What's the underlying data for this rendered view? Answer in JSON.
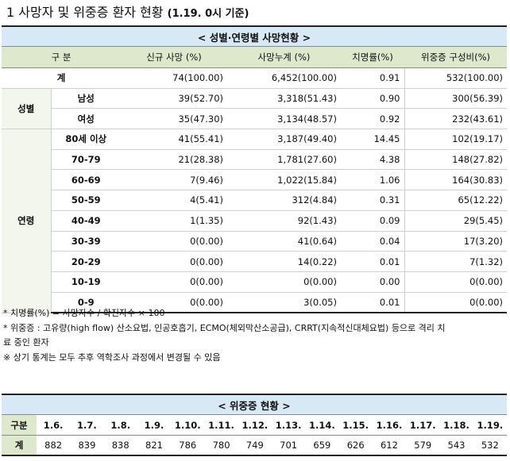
{
  "title": {
    "text": "1  사망자 및 위중증 환자 현황",
    "date": "(1.19. 0시 기준)"
  },
  "death_table": {
    "caption": "< 성별·연령별 사망현황 >",
    "headers": [
      "구 분",
      "신규 사망 (%)",
      "사망누계 (%)",
      "치명률(%)",
      "위중증   구성비(%)"
    ],
    "total": {
      "label": "계",
      "new": "74(100.00)",
      "cum": "6,452(100.00)",
      "fatality": "0.91",
      "severe": "532(100.00)"
    },
    "sex_group": "성별",
    "sex": [
      {
        "label": "남성",
        "new": "39(52.70)",
        "cum": "3,318(51.43)",
        "fatality": "0.90",
        "severe": "300(56.39)"
      },
      {
        "label": "여성",
        "new": "35(47.30)",
        "cum": "3,134(48.57)",
        "fatality": "0.92",
        "severe": "232(43.61)"
      }
    ],
    "age_group": "연령",
    "age": [
      {
        "label": "80세 이상",
        "new": "41(55.41)",
        "cum": "3,187(49.40)",
        "fatality": "14.45",
        "severe": "102(19.17)"
      },
      {
        "label": "70-79",
        "new": "21(28.38)",
        "cum": "1,781(27.60)",
        "fatality": "4.38",
        "severe": "148(27.82)"
      },
      {
        "label": "60-69",
        "new": "7(9.46)",
        "cum": "1,022(15.84)",
        "fatality": "1.06",
        "severe": "164(30.83)"
      },
      {
        "label": "50-59",
        "new": "4(5.41)",
        "cum": "312(4.84)",
        "fatality": "0.31",
        "severe": "65(12.22)"
      },
      {
        "label": "40-49",
        "new": "1(1.35)",
        "cum": "92(1.43)",
        "fatality": "0.09",
        "severe": "29(5.45)"
      },
      {
        "label": "30-39",
        "new": "0(0.00)",
        "cum": "41(0.64)",
        "fatality": "0.04",
        "severe": "17(3.20)"
      },
      {
        "label": "20-29",
        "new": "0(0.00)",
        "cum": "14(0.22)",
        "fatality": "0.01",
        "severe": "7(1.32)"
      },
      {
        "label": "10-19",
        "new": "0(0.00)",
        "cum": "0(0.00)",
        "fatality": "0.00",
        "severe": "0(0.00)"
      },
      {
        "label": "0-9",
        "new": "0(0.00)",
        "cum": "3(0.05)",
        "fatality": "0.01",
        "severe": "0(0.00)"
      }
    ]
  },
  "notes": [
    "* 치명률(%) = 사망자수 / 확진자수 × 100",
    "* 위중증 : 고유량(high flow) 산소요법, 인공호흡기, ECMO(체외막산소공급), CRRT(지속적신대체요법) 등으로 격리 치",
    "료 중인 환자",
    "※ 상기 통계는 모두 추후 역학조사 과정에서 변경될 수 있음"
  ],
  "severe_table": {
    "caption": "< 위중증 현황 >",
    "row_header": "구분",
    "dates": [
      "1.6.",
      "1.7.",
      "1.8.",
      "1.9.",
      "1.10.",
      "1.11.",
      "1.12.",
      "1.13.",
      "1.14.",
      "1.15.",
      "1.16.",
      "1.17.",
      "1.18.",
      "1.19."
    ],
    "total_label": "계",
    "values": [
      "882",
      "839",
      "838",
      "821",
      "786",
      "780",
      "749",
      "701",
      "659",
      "626",
      "612",
      "579",
      "543",
      "532"
    ]
  }
}
